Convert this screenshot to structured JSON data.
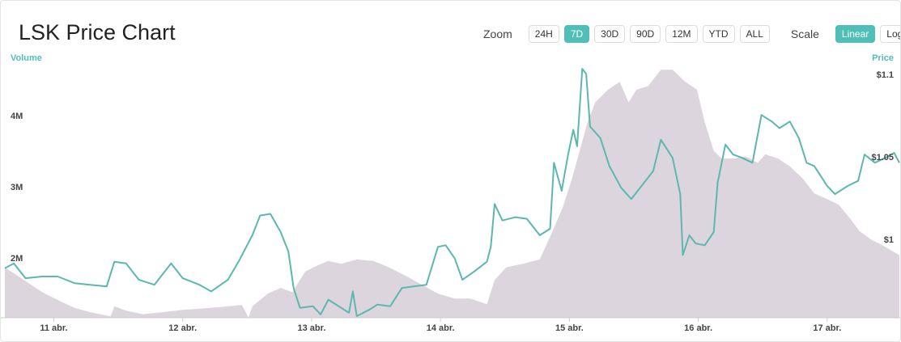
{
  "chart_data": {
    "type": "line",
    "title": "LSK Price Chart",
    "y_label": "Volume",
    "y2_label": "Price",
    "xlim": [
      10.62,
      17.56
    ],
    "xticks": [
      {
        "value": 11,
        "label": "11 abr."
      },
      {
        "value": 12,
        "label": "12 abr."
      },
      {
        "value": 13,
        "label": "13 abr."
      },
      {
        "value": 14,
        "label": "14 abr."
      },
      {
        "value": 15,
        "label": "15 abr."
      },
      {
        "value": 16,
        "label": "16 abr."
      },
      {
        "value": 17,
        "label": "17 abr."
      }
    ],
    "ylim": [
      1170000,
      4720000
    ],
    "yticks": [
      {
        "value": 2000000,
        "label": "2M"
      },
      {
        "value": 3000000,
        "label": "3M"
      },
      {
        "value": 4000000,
        "label": "4M"
      }
    ],
    "y2lim": [
      0.953,
      1.106
    ],
    "y2ticks": [
      {
        "value": 1,
        "label": "$1"
      },
      {
        "value": 1.05,
        "label": "$1.05"
      },
      {
        "value": 1.1,
        "label": "$1.1"
      }
    ],
    "series": [
      {
        "name": "Volume",
        "kind": "area",
        "color": "#ddd5de",
        "x": [
          10.62,
          10.72,
          10.81,
          10.91,
          11.03,
          11.16,
          11.28,
          11.44,
          11.47,
          11.56,
          11.69,
          11.85,
          12.0,
          12.22,
          12.46,
          12.51,
          12.54,
          12.66,
          12.76,
          12.85,
          12.95,
          13.04,
          13.13,
          13.23,
          13.35,
          13.48,
          13.6,
          13.73,
          13.86,
          13.98,
          14.11,
          14.23,
          14.36,
          14.42,
          14.51,
          14.64,
          14.77,
          14.86,
          14.95,
          15.02,
          15.08,
          15.14,
          15.2,
          15.3,
          15.39,
          15.46,
          15.52,
          15.61,
          15.71,
          15.8,
          15.9,
          15.99,
          16.05,
          16.12,
          16.18,
          16.27,
          16.37,
          16.46,
          16.52,
          16.62,
          16.71,
          16.81,
          16.9,
          17.0,
          17.09,
          17.18,
          17.25,
          17.34,
          17.43,
          17.56
        ],
        "values": [
          1880000,
          1760000,
          1650000,
          1530000,
          1420000,
          1310000,
          1250000,
          1190000,
          1330000,
          1270000,
          1220000,
          1250000,
          1280000,
          1310000,
          1350000,
          1170000,
          1330000,
          1510000,
          1590000,
          1530000,
          1820000,
          1900000,
          1970000,
          1930000,
          1990000,
          1970000,
          1880000,
          1760000,
          1630000,
          1510000,
          1440000,
          1440000,
          1360000,
          1700000,
          1880000,
          1930000,
          1990000,
          2350000,
          2730000,
          3130000,
          3520000,
          3920000,
          4200000,
          4380000,
          4490000,
          4200000,
          4380000,
          4430000,
          4660000,
          4660000,
          4490000,
          4380000,
          3920000,
          3520000,
          3410000,
          3410000,
          3440000,
          3350000,
          3470000,
          3410000,
          3300000,
          3130000,
          2920000,
          2840000,
          2760000,
          2560000,
          2390000,
          2270000,
          2190000,
          2050000
        ]
      },
      {
        "name": "Price",
        "kind": "line",
        "axis": "y2",
        "color": "#5cb8ae",
        "x": [
          10.62,
          10.69,
          10.78,
          10.91,
          11.03,
          11.16,
          11.28,
          11.41,
          11.47,
          11.56,
          11.66,
          11.78,
          11.91,
          12.0,
          12.13,
          12.22,
          12.35,
          12.44,
          12.54,
          12.6,
          12.68,
          12.76,
          12.82,
          12.86,
          12.91,
          13.01,
          13.07,
          13.13,
          13.23,
          13.29,
          13.32,
          13.35,
          13.45,
          13.51,
          13.61,
          13.7,
          13.79,
          13.89,
          13.98,
          14.04,
          14.11,
          14.17,
          14.26,
          14.36,
          14.39,
          14.42,
          14.48,
          14.58,
          14.67,
          14.77,
          14.85,
          14.88,
          14.94,
          14.99,
          15.03,
          15.06,
          15.1,
          15.13,
          15.16,
          15.24,
          15.31,
          15.4,
          15.48,
          15.56,
          15.65,
          15.71,
          15.8,
          15.86,
          15.88,
          15.93,
          15.98,
          16.05,
          16.12,
          16.15,
          16.21,
          16.27,
          16.34,
          16.42,
          16.49,
          16.57,
          16.63,
          16.71,
          16.78,
          16.84,
          16.9,
          17.0,
          17.06,
          17.16,
          17.24,
          17.29,
          17.37,
          17.45,
          17.52,
          17.56
        ],
        "values": [
          0.983,
          0.986,
          0.977,
          0.978,
          0.978,
          0.974,
          0.973,
          0.972,
          0.987,
          0.986,
          0.976,
          0.973,
          0.986,
          0.977,
          0.973,
          0.969,
          0.976,
          0.988,
          1.003,
          1.015,
          1.016,
          1.005,
          0.993,
          0.971,
          0.959,
          0.96,
          0.955,
          0.964,
          0.959,
          0.956,
          0.969,
          0.954,
          0.958,
          0.961,
          0.96,
          0.971,
          0.972,
          0.973,
          0.996,
          0.997,
          0.989,
          0.976,
          0.981,
          0.987,
          0.996,
          1.022,
          1.012,
          1.014,
          1.013,
          1.003,
          1.007,
          1.047,
          1.03,
          1.052,
          1.067,
          1.057,
          1.104,
          1.101,
          1.069,
          1.062,
          1.045,
          1.032,
          1.025,
          1.033,
          1.042,
          1.061,
          1.05,
          1.028,
          0.991,
          1.003,
          0.998,
          0.997,
          1.005,
          1.035,
          1.058,
          1.052,
          1.05,
          1.047,
          1.076,
          1.072,
          1.068,
          1.072,
          1.062,
          1.047,
          1.045,
          1.033,
          1.028,
          1.033,
          1.036,
          1.052,
          1.047,
          1.05,
          1.053,
          1.047
        ]
      }
    ]
  },
  "controls": {
    "zoom_label": "Zoom",
    "zoom": [
      "24H",
      "7D",
      "30D",
      "90D",
      "12M",
      "YTD",
      "ALL"
    ],
    "zoom_active": 1,
    "scale_label": "Scale",
    "scale": [
      "Linear",
      "Log"
    ],
    "scale_active": 0,
    "active_color": "#4fbfb7"
  }
}
